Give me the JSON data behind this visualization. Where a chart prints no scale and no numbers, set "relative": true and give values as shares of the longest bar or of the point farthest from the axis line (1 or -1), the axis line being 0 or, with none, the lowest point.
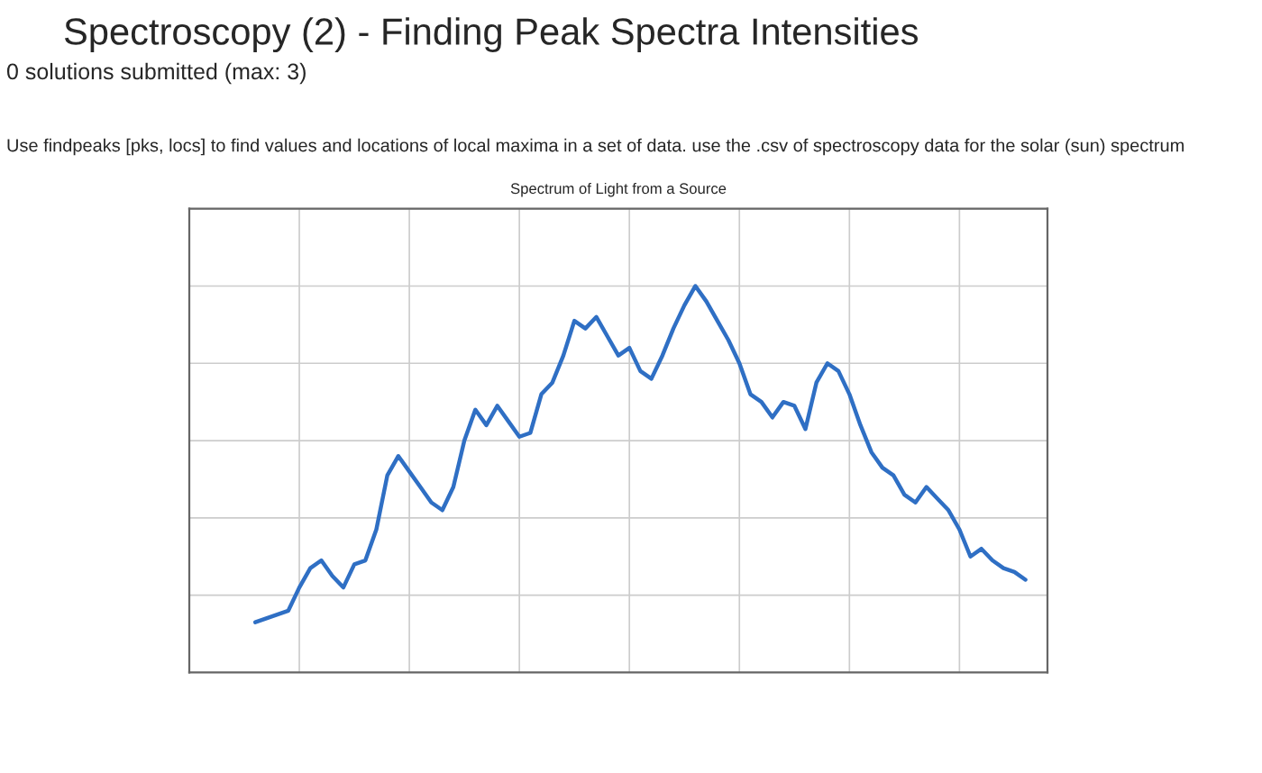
{
  "chart_data": {
    "type": "line",
    "title": "Spectroscopy (2) - Finding Peak Spectra Intensities",
    "subtitle": "0 solutions submitted (max: 3)",
    "annotations": [
      "Use findpeaks [pks, locs] to find values and locations of local maxima in a set of data. use the .csv of spectroscopy data for the solar (sun) spectrum",
      "Spectrum of Light from a Source"
    ],
    "relative": true,
    "grid": true,
    "marker": "none",
    "line_style": "solid",
    "categories": [
      null,
      null,
      null,
      null,
      null,
      null,
      null,
      null,
      null,
      null,
      null,
      null,
      null,
      null,
      null,
      null,
      null,
      null,
      null,
      null,
      null,
      null,
      null,
      null,
      null,
      null,
      null,
      null,
      null,
      null,
      null,
      null,
      null,
      null,
      null,
      null,
      null,
      null,
      null,
      null,
      null,
      null,
      null,
      null,
      null,
      null,
      null,
      null,
      null,
      null,
      null,
      null,
      null,
      null,
      null,
      null,
      null,
      null,
      null,
      null,
      null,
      null,
      null,
      null,
      null,
      null,
      null,
      null,
      null,
      null,
      null
    ],
    "series": [
      {
        "color": "#2f6fc4",
        "values": [
          0.13,
          0.14,
          0.15,
          0.16,
          0.22,
          0.27,
          0.29,
          0.25,
          0.22,
          0.28,
          0.29,
          0.37,
          0.51,
          0.56,
          0.52,
          0.48,
          0.44,
          0.42,
          0.48,
          0.6,
          0.68,
          0.64,
          0.69,
          0.65,
          0.61,
          0.62,
          0.72,
          0.75,
          0.82,
          0.91,
          0.89,
          0.92,
          0.87,
          0.82,
          0.84,
          0.78,
          0.76,
          0.82,
          0.89,
          0.95,
          1,
          0.96,
          0.91,
          0.86,
          0.8,
          0.72,
          0.7,
          0.66,
          0.7,
          0.69,
          0.63,
          0.75,
          0.8,
          0.78,
          0.72,
          0.64,
          0.57,
          0.53,
          0.51,
          0.46,
          0.44,
          0.48,
          0.45,
          0.42,
          0.37,
          0.3,
          0.32,
          0.29,
          0.27,
          0.26,
          0.24
        ]
      }
    ]
  }
}
